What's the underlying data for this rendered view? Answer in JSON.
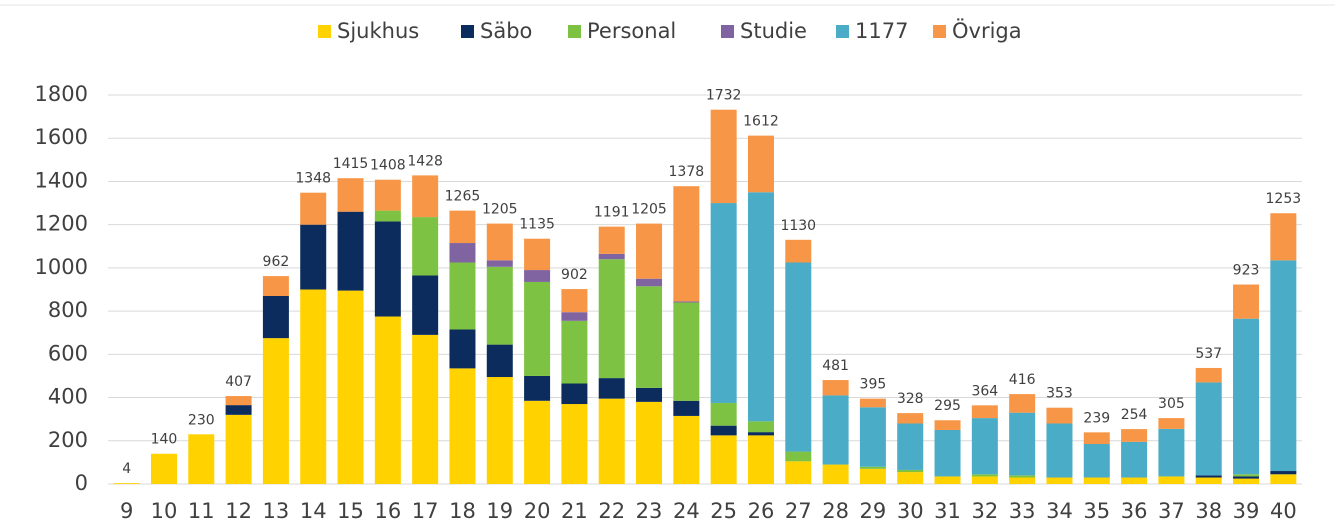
{
  "chart_data": {
    "type": "stacked_bar",
    "categories": [
      "9",
      "10",
      "11",
      "12",
      "13",
      "14",
      "15",
      "16",
      "17",
      "18",
      "19",
      "20",
      "21",
      "22",
      "23",
      "24",
      "25",
      "26",
      "27",
      "28",
      "29",
      "30",
      "31",
      "32",
      "33",
      "34",
      "35",
      "36",
      "37",
      "38",
      "39",
      "40"
    ],
    "series": [
      {
        "name": "Sjukhus",
        "color": "#ffd200",
        "values": [
          4,
          140,
          230,
          320,
          675,
          900,
          895,
          775,
          690,
          535,
          495,
          385,
          370,
          395,
          380,
          315,
          225,
          225,
          105,
          90,
          70,
          55,
          35,
          35,
          30,
          30,
          30,
          30,
          35,
          30,
          25,
          45
        ]
      },
      {
        "name": "Säbo",
        "color": "#0b2c5c",
        "values": [
          0,
          0,
          0,
          45,
          195,
          300,
          365,
          440,
          275,
          180,
          150,
          115,
          95,
          95,
          65,
          70,
          45,
          15,
          0,
          0,
          0,
          0,
          0,
          0,
          0,
          0,
          0,
          0,
          0,
          10,
          10,
          15
        ]
      },
      {
        "name": "Personal",
        "color": "#7dc242",
        "values": [
          0,
          0,
          0,
          0,
          0,
          0,
          0,
          50,
          270,
          310,
          360,
          435,
          290,
          550,
          470,
          455,
          105,
          50,
          45,
          0,
          10,
          10,
          0,
          10,
          10,
          0,
          0,
          0,
          0,
          0,
          10,
          0
        ]
      },
      {
        "name": "Studie",
        "color": "#8064a2",
        "values": [
          0,
          0,
          0,
          0,
          0,
          0,
          0,
          0,
          0,
          90,
          30,
          55,
          40,
          25,
          35,
          5,
          0,
          0,
          0,
          0,
          0,
          0,
          0,
          0,
          0,
          0,
          0,
          0,
          0,
          0,
          0,
          0
        ]
      },
      {
        "name": "1177",
        "color": "#4aacc6",
        "values": [
          0,
          0,
          0,
          0,
          0,
          0,
          0,
          0,
          0,
          0,
          0,
          0,
          0,
          0,
          0,
          0,
          925,
          1060,
          875,
          320,
          275,
          215,
          215,
          260,
          290,
          250,
          155,
          165,
          220,
          430,
          720,
          975
        ]
      },
      {
        "name": "Övriga",
        "color": "#f79646",
        "values": [
          0,
          0,
          0,
          42,
          92,
          148,
          155,
          143,
          193,
          150,
          170,
          145,
          107,
          126,
          255,
          533,
          432,
          262,
          105,
          71,
          40,
          48,
          45,
          59,
          86,
          73,
          54,
          59,
          50,
          67,
          158,
          218
        ]
      }
    ],
    "totals": [
      4,
      140,
      230,
      407,
      962,
      1348,
      1415,
      1408,
      1428,
      1265,
      1205,
      1135,
      902,
      1191,
      1205,
      1378,
      1732,
      1612,
      1130,
      481,
      395,
      328,
      295,
      364,
      416,
      353,
      239,
      254,
      305,
      537,
      923,
      1253
    ],
    "ylim": [
      0,
      1800
    ],
    "yticks": [
      0,
      200,
      400,
      600,
      800,
      1000,
      1200,
      1400,
      1600,
      1800
    ],
    "grid": true
  }
}
